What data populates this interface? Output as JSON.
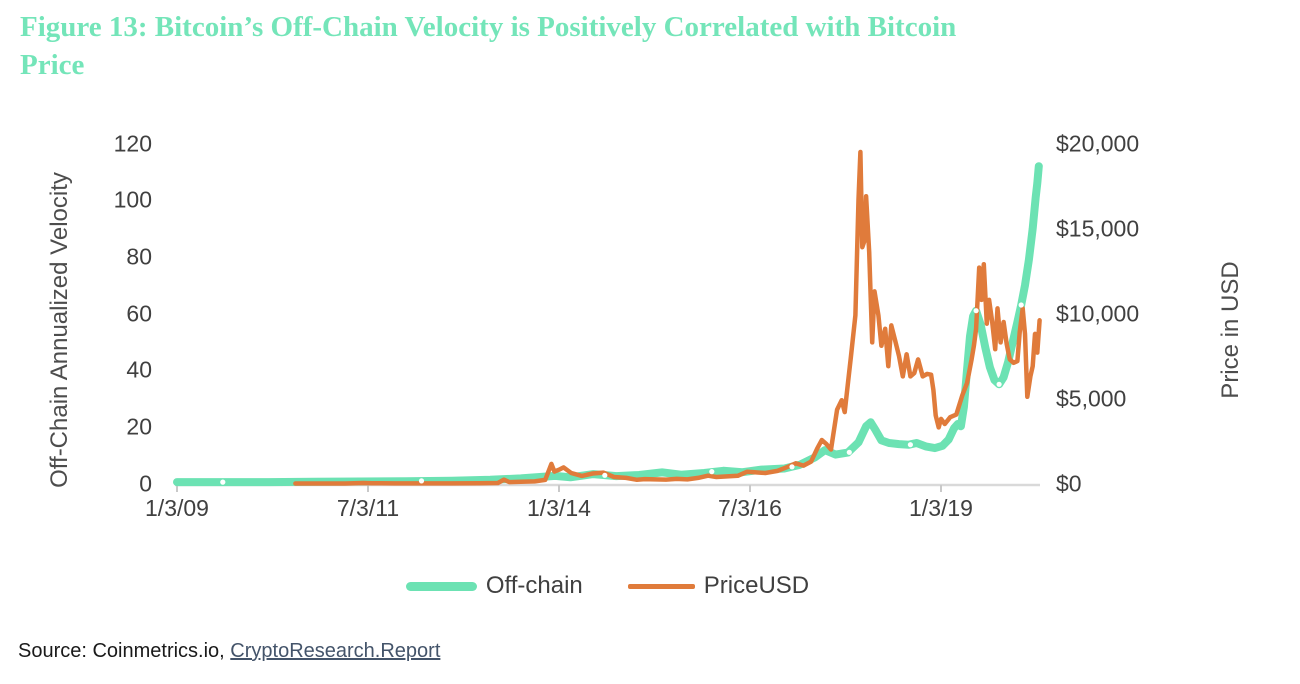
{
  "figure": {
    "title_lines": [
      "Figure 13: Bitcoin’s Off-Chain Velocity is Positively Correlated with Bitcoin",
      "Price"
    ],
    "title_color": "#74E5B9"
  },
  "source": {
    "prefix": "Source: Coinmetrics.io, ",
    "link_text": "CryptoResearch.Report"
  },
  "styles": {
    "text_color": "#404040",
    "axis_line_color": "#D9D9D9",
    "tick_color": "#C9C9C9",
    "link_color": "#44546A",
    "offchain_color": "#6CE2B3",
    "price_color": "#E07B3B",
    "marker_color": "#FFFFFF"
  },
  "chart_data": {
    "type": "line",
    "title": "Figure 13: Bitcoin’s Off-Chain Velocity is Positively Correlated with Bitcoin Price",
    "xlabel": "",
    "ylabel": "Off-Chain Annualized Velocity",
    "y2label": "Price in USD",
    "ylim": [
      0,
      120
    ],
    "y2lim": [
      0,
      20000
    ],
    "grid": false,
    "legend_position": "bottom",
    "x_tick_labels": [
      {
        "year": 2009.0,
        "label": "1/3/09"
      },
      {
        "year": 2011.5,
        "label": "7/3/11"
      },
      {
        "year": 2014.0,
        "label": "1/3/14"
      },
      {
        "year": 2016.5,
        "label": "7/3/16"
      },
      {
        "year": 2019.0,
        "label": "1/3/19"
      }
    ],
    "y_ticks_left": [
      {
        "value": 0,
        "label": "0"
      },
      {
        "value": 20,
        "label": "20"
      },
      {
        "value": 40,
        "label": "40"
      },
      {
        "value": 60,
        "label": "60"
      },
      {
        "value": 80,
        "label": "80"
      },
      {
        "value": 100,
        "label": "100"
      },
      {
        "value": 120,
        "label": "120"
      }
    ],
    "y_ticks_right": [
      {
        "value": 0,
        "label": "$0"
      },
      {
        "value": 5000,
        "label": "$5,000"
      },
      {
        "value": 10000,
        "label": "$10,000"
      },
      {
        "value": 15000,
        "label": "$15,000"
      },
      {
        "value": 20000,
        "label": "$20,000"
      }
    ],
    "series": [
      {
        "name": "Off-chain",
        "axis": "left",
        "color": "#6CE2B3",
        "stroke_width": 8,
        "points": [
          [
            2009.0,
            0.5
          ],
          [
            2009.6,
            0.5
          ],
          [
            2010.2,
            0.5
          ],
          [
            2010.8,
            0.6
          ],
          [
            2011.4,
            0.7
          ],
          [
            2012.0,
            0.8
          ],
          [
            2012.6,
            1.0
          ],
          [
            2013.1,
            1.3
          ],
          [
            2013.5,
            1.8
          ],
          [
            2013.95,
            2.7
          ],
          [
            2014.15,
            2.2
          ],
          [
            2014.45,
            3.3
          ],
          [
            2014.75,
            2.6
          ],
          [
            2015.05,
            3.0
          ],
          [
            2015.35,
            3.9
          ],
          [
            2015.6,
            3.1
          ],
          [
            2015.9,
            3.7
          ],
          [
            2016.15,
            4.5
          ],
          [
            2016.4,
            4.0
          ],
          [
            2016.65,
            4.9
          ],
          [
            2016.95,
            5.3
          ],
          [
            2017.15,
            6.6
          ],
          [
            2017.35,
            9.2
          ],
          [
            2017.48,
            11.8
          ],
          [
            2017.62,
            10.2
          ],
          [
            2017.78,
            10.9
          ],
          [
            2017.92,
            14.5
          ],
          [
            2018.02,
            20.2
          ],
          [
            2018.08,
            21.6
          ],
          [
            2018.14,
            19.0
          ],
          [
            2018.22,
            15.2
          ],
          [
            2018.32,
            14.3
          ],
          [
            2018.45,
            13.9
          ],
          [
            2018.58,
            13.7
          ],
          [
            2018.68,
            14.3
          ],
          [
            2018.8,
            13.1
          ],
          [
            2018.92,
            12.5
          ],
          [
            2019.02,
            13.3
          ],
          [
            2019.1,
            15.5
          ],
          [
            2019.17,
            19.5
          ],
          [
            2019.22,
            21.0
          ],
          [
            2019.26,
            20.2
          ],
          [
            2019.3,
            27
          ],
          [
            2019.34,
            40
          ],
          [
            2019.38,
            52
          ],
          [
            2019.42,
            59
          ],
          [
            2019.46,
            61
          ],
          [
            2019.52,
            56
          ],
          [
            2019.58,
            48
          ],
          [
            2019.64,
            41
          ],
          [
            2019.7,
            36.5
          ],
          [
            2019.76,
            35
          ],
          [
            2019.82,
            37.5
          ],
          [
            2019.88,
            43
          ],
          [
            2019.94,
            50
          ],
          [
            2020.0,
            57
          ],
          [
            2020.05,
            63
          ],
          [
            2020.1,
            70
          ],
          [
            2020.15,
            79
          ],
          [
            2020.2,
            90
          ],
          [
            2020.24,
            101
          ],
          [
            2020.26,
            106
          ],
          [
            2020.28,
            112
          ]
        ]
      },
      {
        "name": "PriceUSD",
        "axis": "right",
        "color": "#E07B3B",
        "stroke_width": 4.5,
        "points": [
          [
            2010.55,
            0.07
          ],
          [
            2010.9,
            0.2
          ],
          [
            2011.2,
            1
          ],
          [
            2011.44,
            31
          ],
          [
            2011.55,
            15
          ],
          [
            2011.85,
            3
          ],
          [
            2012.2,
            5
          ],
          [
            2012.6,
            8
          ],
          [
            2012.95,
            13
          ],
          [
            2013.2,
            30
          ],
          [
            2013.28,
            230
          ],
          [
            2013.35,
            85
          ],
          [
            2013.5,
            100
          ],
          [
            2013.68,
            125
          ],
          [
            2013.82,
            210
          ],
          [
            2013.9,
            1150
          ],
          [
            2013.94,
            700
          ],
          [
            2014.0,
            810
          ],
          [
            2014.06,
            950
          ],
          [
            2014.16,
            620
          ],
          [
            2014.3,
            450
          ],
          [
            2014.44,
            590
          ],
          [
            2014.58,
            640
          ],
          [
            2014.72,
            380
          ],
          [
            2014.88,
            330
          ],
          [
            2015.02,
            220
          ],
          [
            2015.12,
            260
          ],
          [
            2015.26,
            240
          ],
          [
            2015.4,
            230
          ],
          [
            2015.54,
            270
          ],
          [
            2015.68,
            240
          ],
          [
            2015.82,
            330
          ],
          [
            2015.95,
            460
          ],
          [
            2016.06,
            380
          ],
          [
            2016.2,
            420
          ],
          [
            2016.34,
            455
          ],
          [
            2016.46,
            690
          ],
          [
            2016.56,
            660
          ],
          [
            2016.7,
            615
          ],
          [
            2016.86,
            740
          ],
          [
            2017.0,
            990
          ],
          [
            2017.1,
            1190
          ],
          [
            2017.2,
            1050
          ],
          [
            2017.3,
            1290
          ],
          [
            2017.38,
            2050
          ],
          [
            2017.44,
            2560
          ],
          [
            2017.5,
            2320
          ],
          [
            2017.56,
            2000
          ],
          [
            2017.64,
            4350
          ],
          [
            2017.7,
            4900
          ],
          [
            2017.74,
            4200
          ],
          [
            2017.82,
            7400
          ],
          [
            2017.88,
            9900
          ],
          [
            2017.92,
            16700
          ],
          [
            2017.945,
            19500
          ],
          [
            2017.97,
            13900
          ],
          [
            2018.0,
            14300
          ],
          [
            2018.02,
            16900
          ],
          [
            2018.06,
            13600
          ],
          [
            2018.1,
            8300
          ],
          [
            2018.13,
            11300
          ],
          [
            2018.18,
            9900
          ],
          [
            2018.22,
            8100
          ],
          [
            2018.27,
            9100
          ],
          [
            2018.31,
            6900
          ],
          [
            2018.35,
            9300
          ],
          [
            2018.4,
            8400
          ],
          [
            2018.45,
            7500
          ],
          [
            2018.5,
            6300
          ],
          [
            2018.55,
            7600
          ],
          [
            2018.6,
            6300
          ],
          [
            2018.65,
            6500
          ],
          [
            2018.7,
            7300
          ],
          [
            2018.76,
            6300
          ],
          [
            2018.82,
            6450
          ],
          [
            2018.87,
            6400
          ],
          [
            2018.9,
            5500
          ],
          [
            2018.93,
            4000
          ],
          [
            2018.97,
            3300
          ],
          [
            2019.0,
            3800
          ],
          [
            2019.05,
            3500
          ],
          [
            2019.12,
            3900
          ],
          [
            2019.2,
            4050
          ],
          [
            2019.28,
            5200
          ],
          [
            2019.34,
            5900
          ],
          [
            2019.4,
            7300
          ],
          [
            2019.43,
            8100
          ],
          [
            2019.46,
            9100
          ],
          [
            2019.5,
            12700
          ],
          [
            2019.53,
            10800
          ],
          [
            2019.56,
            12900
          ],
          [
            2019.6,
            9400
          ],
          [
            2019.63,
            10800
          ],
          [
            2019.67,
            9500
          ],
          [
            2019.71,
            7900
          ],
          [
            2019.74,
            10300
          ],
          [
            2019.78,
            8300
          ],
          [
            2019.82,
            9500
          ],
          [
            2019.86,
            8200
          ],
          [
            2019.9,
            7300
          ],
          [
            2019.95,
            7100
          ],
          [
            2020.0,
            7200
          ],
          [
            2020.03,
            8900
          ],
          [
            2020.07,
            10300
          ],
          [
            2020.1,
            8800
          ],
          [
            2020.13,
            5100
          ],
          [
            2020.17,
            6300
          ],
          [
            2020.2,
            6900
          ],
          [
            2020.23,
            8800
          ],
          [
            2020.26,
            7700
          ],
          [
            2020.29,
            9600
          ]
        ]
      }
    ],
    "marker_points_offchain": {
      "color": "#FFFFFF",
      "points": [
        [
          2009.6,
          0.5
        ],
        [
          2012.2,
          0.9
        ],
        [
          2014.6,
          2.9
        ],
        [
          2016.0,
          4.2
        ],
        [
          2017.05,
          5.9
        ],
        [
          2017.8,
          11.0
        ],
        [
          2018.6,
          13.7
        ],
        [
          2019.46,
          61
        ],
        [
          2019.76,
          35
        ],
        [
          2020.05,
          63
        ]
      ]
    }
  }
}
